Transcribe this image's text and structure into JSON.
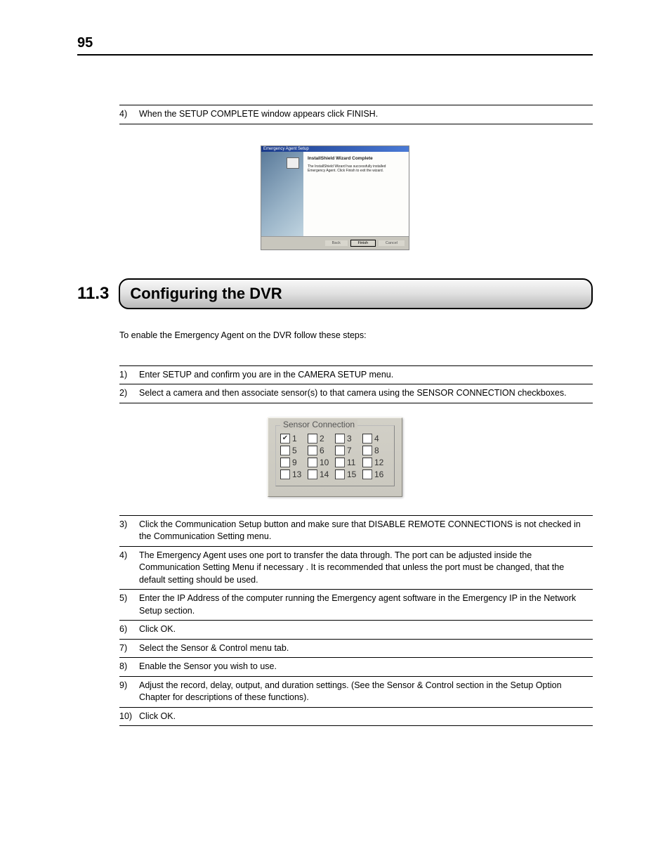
{
  "page_number": "95",
  "top_step": {
    "num": "4)",
    "text": "When the SETUP COMPLETE window appears click FINISH."
  },
  "installer": {
    "title": "Emergency Agent Setup",
    "heading": "InstallShield Wizard Complete",
    "body": "The InstallShield Wizard has successfully installed Emergency Agent. Click Finish to exit the wizard.",
    "buttons": {
      "back": "Back",
      "finish": "Finish",
      "cancel": "Cancel"
    }
  },
  "section": {
    "number": "11.3",
    "title": "Configuring the DVR",
    "intro": "To enable the Emergency Agent on the DVR follow these steps:"
  },
  "steps_top": [
    {
      "num": "1)",
      "text": "Enter SETUP and confirm you are in the CAMERA SETUP menu."
    },
    {
      "num": "2)",
      "text": "Select a camera and then associate sensor(s) to that camera using the SENSOR CONNECTION checkboxes."
    }
  ],
  "sensor": {
    "legend": "Sensor Connection",
    "items": [
      {
        "label": "1",
        "checked": true
      },
      {
        "label": "2",
        "checked": false
      },
      {
        "label": "3",
        "checked": false
      },
      {
        "label": "4",
        "checked": false
      },
      {
        "label": "5",
        "checked": false
      },
      {
        "label": "6",
        "checked": false
      },
      {
        "label": "7",
        "checked": false
      },
      {
        "label": "8",
        "checked": false
      },
      {
        "label": "9",
        "checked": false
      },
      {
        "label": "10",
        "checked": false
      },
      {
        "label": "11",
        "checked": false
      },
      {
        "label": "12",
        "checked": false
      },
      {
        "label": "13",
        "checked": false
      },
      {
        "label": "14",
        "checked": false
      },
      {
        "label": "15",
        "checked": false
      },
      {
        "label": "16",
        "checked": false
      }
    ]
  },
  "steps_bottom": [
    {
      "num": "3)",
      "text": "Click the Communication Setup button and make sure that DISABLE REMOTE CONNECTIONS is not checked in the Communication Setting menu."
    },
    {
      "num": "4)",
      "text": "The Emergency Agent uses one port to transfer the data through. The port can be adjusted inside the Communication Setting Menu  if necessary . It is recommended that unless the port must be changed, that the default setting should be used."
    },
    {
      "num": "5)",
      "text": "Enter the IP Address of the computer running the Emergency agent software in the Emergency IP in the Network Setup section."
    },
    {
      "num": "6)",
      "text": "Click OK."
    },
    {
      "num": "7)",
      "text": "Select the Sensor & Control menu tab."
    },
    {
      "num": "8)",
      "text": "Enable the Sensor you wish to use."
    },
    {
      "num": "9)",
      "text": "Adjust the record, delay, output, and duration settings. (See the Sensor & Control section in the Setup Option Chapter for descriptions of these functions)."
    },
    {
      "num": "10)",
      "text": "Click OK."
    }
  ],
  "colors": {
    "text": "#000000",
    "panel_bg": "#cecbc2",
    "gradient_dark": "#b8b8b8"
  }
}
